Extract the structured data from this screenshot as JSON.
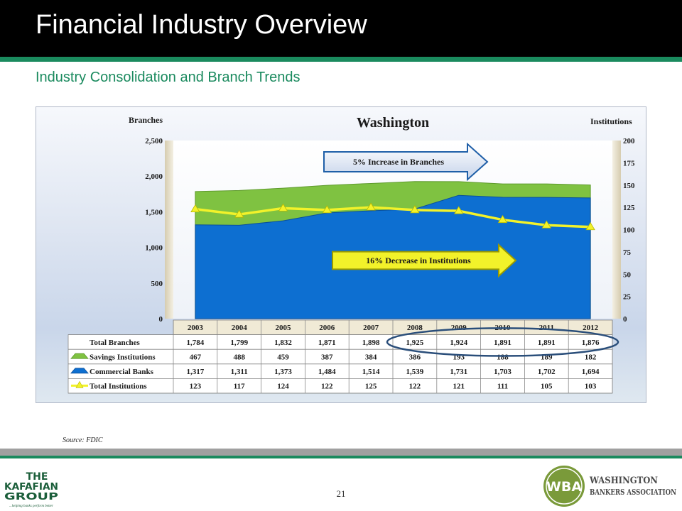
{
  "slide": {
    "title": "Financial Industry Overview",
    "subtitle": "Industry Consolidation and Branch Trends",
    "source": "Source: FDIC",
    "page_number": "21"
  },
  "logos": {
    "left_lines": [
      "THE",
      "KAFAFIAN",
      "GROUP"
    ],
    "left_tagline": "...helping banks perform better",
    "right_initials": "WBA",
    "right_line1": "WASHINGTON",
    "right_line2": "BANKERS ASSOCIATION"
  },
  "colors": {
    "commercial": "#0d6fd1",
    "savings": "#7fc241",
    "institutions": "#f2f22a",
    "accent_green": "#1a8a5e"
  },
  "chart_data": {
    "type": "area",
    "title": "Washington",
    "ylabel_left": "Branches",
    "ylabel_right": "Institutions",
    "ylim_left": [
      0,
      2500
    ],
    "yticks_left": [
      0,
      500,
      1000,
      1500,
      2000,
      2500
    ],
    "ytick_labels_left": [
      "0",
      "500",
      "1,000",
      "1,500",
      "2,000",
      "2,500"
    ],
    "ylim_right": [
      0,
      200
    ],
    "yticks_right": [
      0,
      25,
      50,
      75,
      100,
      125,
      150,
      175,
      200
    ],
    "categories": [
      "2003",
      "2004",
      "2005",
      "2006",
      "2007",
      "2008",
      "2009",
      "2010",
      "2011",
      "2012"
    ],
    "series": [
      {
        "name": "Commercial Banks",
        "type": "area",
        "axis": "left",
        "stack": true,
        "values": [
          1317,
          1311,
          1373,
          1484,
          1514,
          1539,
          1731,
          1703,
          1702,
          1694
        ],
        "display": [
          "1,317",
          "1,311",
          "1,373",
          "1,484",
          "1,514",
          "1,539",
          "1,731",
          "1,703",
          "1,702",
          "1,694"
        ]
      },
      {
        "name": "Savings Institutions",
        "type": "area",
        "axis": "left",
        "stack": true,
        "values": [
          467,
          488,
          459,
          387,
          384,
          386,
          193,
          188,
          189,
          182
        ],
        "display": [
          "467",
          "488",
          "459",
          "387",
          "384",
          "386",
          "193",
          "188",
          "189",
          "182"
        ]
      },
      {
        "name": "Total Institutions",
        "type": "line",
        "axis": "right",
        "values": [
          123,
          117,
          124,
          122,
          125,
          122,
          121,
          111,
          105,
          103
        ],
        "display": [
          "123",
          "117",
          "124",
          "122",
          "125",
          "122",
          "121",
          "111",
          "105",
          "103"
        ]
      }
    ],
    "total_branches": {
      "label": "Total Branches",
      "values": [
        1784,
        1799,
        1832,
        1871,
        1898,
        1925,
        1924,
        1891,
        1891,
        1876
      ],
      "display": [
        "1,784",
        "1,799",
        "1,832",
        "1,871",
        "1,898",
        "1,925",
        "1,924",
        "1,891",
        "1,891",
        "1,876"
      ]
    },
    "table_row_order": [
      "Total Branches",
      "Savings Institutions",
      "Commercial Banks",
      "Total Institutions"
    ],
    "annotations": [
      {
        "text": "5% Increase in Branches",
        "style": "arrow"
      },
      {
        "text": "16% Decrease in Institutions",
        "style": "arrow"
      }
    ],
    "highlight": {
      "columns": [
        "2008",
        "2009",
        "2010",
        "2011",
        "2012"
      ],
      "row": "Total Branches",
      "shape": "ellipse"
    },
    "grid": false
  }
}
